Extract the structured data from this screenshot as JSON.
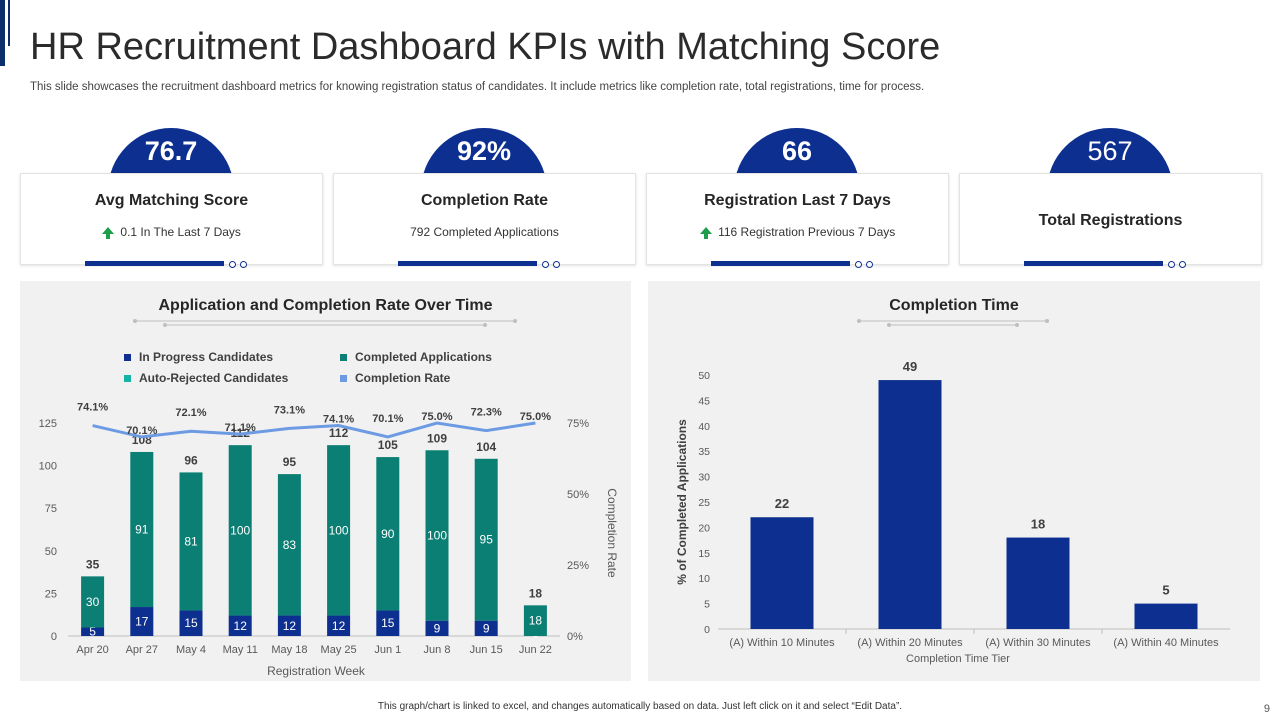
{
  "header": {
    "title": "HR Recruitment Dashboard KPIs with Matching Score",
    "subtitle": "This slide showcases the recruitment dashboard metrics for knowing registration status of candidates. It include metrics like completion rate, total registrations, time for process."
  },
  "kpis": [
    {
      "value": "76.7",
      "label": "Avg Matching Score",
      "sub": "0.1 In The Last 7 Days",
      "arrow": true
    },
    {
      "value": "92%",
      "label": "Completion Rate",
      "sub": "792 Completed Applications",
      "arrow": false
    },
    {
      "value": "66",
      "label": "Registration Last 7 Days",
      "sub": "116 Registration Previous 7 Days",
      "arrow": true
    },
    {
      "value": "567",
      "label": "Total Registrations",
      "sub": "",
      "arrow": false
    }
  ],
  "chart_data": [
    {
      "type": "bar",
      "stacked": true,
      "title": "Application and Completion Rate Over Time",
      "xlabel": "Registration Week",
      "ylabel": "",
      "y2label": "Completion Rate",
      "ylim": [
        0,
        125
      ],
      "yticks": [
        0,
        25,
        50,
        75,
        100,
        125
      ],
      "y2lim": [
        0,
        75
      ],
      "y2ticks": [
        "0%",
        "25%",
        "50%",
        "75%"
      ],
      "categories": [
        "Apr 20",
        "Apr 27",
        "May 4",
        "May 11",
        "May 18",
        "May 25",
        "Jun 1",
        "Jun 8",
        "Jun 15",
        "Jun 22"
      ],
      "series": [
        {
          "name": "In Progress Candidates",
          "values": [
            5,
            17,
            15,
            12,
            12,
            12,
            15,
            9,
            9,
            0
          ],
          "labels": [
            "5",
            "17",
            "15",
            "12",
            "12",
            "12",
            "15",
            "9",
            "9",
            "0"
          ],
          "color": "#0d2f8f"
        },
        {
          "name": "Completed Applications",
          "values": [
            30,
            91,
            81,
            100,
            83,
            100,
            90,
            100,
            95,
            18
          ],
          "labels": [
            "30",
            "91",
            "81",
            "100",
            "83",
            "100",
            "90",
            "100",
            "95",
            "18"
          ],
          "color": "#0b7f74"
        },
        {
          "name": "Auto-Rejected Candidates",
          "values": [
            0,
            0,
            0,
            0,
            0,
            0,
            0,
            0,
            0,
            0
          ],
          "color": "#15b3a6"
        }
      ],
      "totals": [
        "35",
        "108",
        "96",
        "112",
        "95",
        "112",
        "105",
        "109",
        "104",
        "18"
      ],
      "line": {
        "name": "Completion Rate",
        "values": [
          74.1,
          70.1,
          72.1,
          71.1,
          73.1,
          74.1,
          70.1,
          75.0,
          72.3,
          75.0
        ],
        "labels": [
          "74.1%",
          "70.1%",
          "72.1%",
          "71.1%",
          "73.1%",
          "74.1%",
          "70.1%",
          "75.0%",
          "72.3%",
          "75.0%"
        ],
        "color": "#6d9be3"
      },
      "legend": [
        "In Progress Candidates",
        "Completed Applications",
        "Auto-Rejected Candidates",
        "Completion Rate"
      ]
    },
    {
      "type": "bar",
      "title": "Completion Time",
      "xlabel": "Completion Time Tier",
      "ylabel": "% of Completed Applications",
      "ylim": [
        0,
        50
      ],
      "yticks": [
        0,
        5,
        10,
        15,
        20,
        25,
        30,
        35,
        40,
        45,
        50
      ],
      "categories": [
        "(A) Within 10 Minutes",
        "(A) Within 20 Minutes",
        "(A) Within 30 Minutes",
        "(A) Within 40 Minutes"
      ],
      "values": [
        22,
        49,
        18,
        5
      ],
      "labels": [
        "22",
        "49",
        "18",
        "5"
      ],
      "color": "#0d2f8f"
    }
  ],
  "footer": {
    "note": "This graph/chart is linked to excel, and changes automatically based on data. Just left click on it and select “Edit Data”.",
    "page": "9"
  },
  "colors": {
    "accent": "#0d2f8f",
    "teal": "#0b7f74",
    "line": "#6d9be3"
  }
}
